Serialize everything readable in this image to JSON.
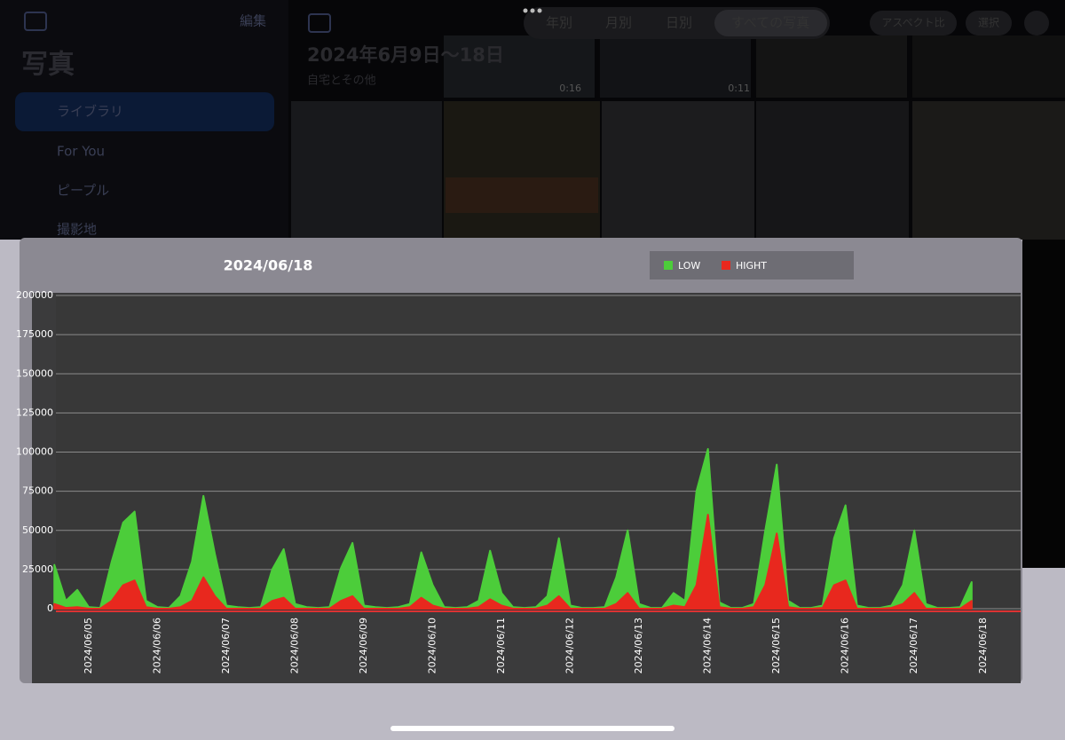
{
  "ui": {
    "sidebar": {
      "edit": "編集",
      "title": "写真",
      "items": [
        "ライブラリ",
        "For You",
        "ピープル",
        "撮影地"
      ]
    },
    "toolbar": {
      "segments": [
        "年別",
        "月別",
        "日別",
        "すべての写真"
      ],
      "aspect": "アスペクト比",
      "select": "選択"
    },
    "header": {
      "title": "2024年6月9日～18日",
      "subtitle": "自宅とその他"
    },
    "thumbs": [
      "0:16",
      "0:11"
    ]
  },
  "chart_data": {
    "type": "area",
    "title": "2024/06/18",
    "categories": [
      null,
      null,
      null,
      "2024/06/05",
      null,
      null,
      null,
      null,
      null,
      "2024/06/06",
      null,
      null,
      null,
      null,
      null,
      "2024/06/07",
      null,
      null,
      null,
      null,
      null,
      "2024/06/08",
      null,
      null,
      null,
      null,
      null,
      "2024/06/09",
      null,
      null,
      null,
      null,
      null,
      "2024/06/10",
      null,
      null,
      null,
      null,
      null,
      "2024/06/11",
      null,
      null,
      null,
      null,
      null,
      "2024/06/12",
      null,
      null,
      null,
      null,
      null,
      "2024/06/13",
      null,
      null,
      null,
      null,
      null,
      "2024/06/14",
      null,
      null,
      null,
      null,
      null,
      "2024/06/15",
      null,
      null,
      null,
      null,
      null,
      "2024/06/16",
      null,
      null,
      null,
      null,
      null,
      "2024/06/17",
      null,
      null,
      null,
      null,
      null,
      "2024/06/18"
    ],
    "series": [
      {
        "name": "LOW",
        "color": "#4ccd3a",
        "values": [
          28000,
          5000,
          12000,
          1000,
          500,
          30000,
          55000,
          62000,
          5000,
          1000,
          500,
          8000,
          30000,
          72000,
          35000,
          2000,
          1000,
          500,
          1000,
          25000,
          38000,
          3000,
          1000,
          500,
          1000,
          26000,
          42000,
          2000,
          1000,
          500,
          1000,
          3000,
          36000,
          15000,
          1000,
          500,
          1000,
          5000,
          37000,
          10000,
          1000,
          500,
          1000,
          8000,
          45000,
          2000,
          500,
          500,
          1000,
          20000,
          50000,
          3000,
          500,
          500,
          10000,
          5000,
          75000,
          102000,
          4000,
          500,
          500,
          3000,
          50000,
          92000,
          5000,
          500,
          500,
          2000,
          45000,
          66000,
          2000,
          500,
          500,
          2000,
          15000,
          50000,
          3000,
          500,
          500,
          1000,
          17000,
          null
        ]
      },
      {
        "name": "HIGHT",
        "color": "#e8281e",
        "values": [
          3000,
          500,
          1000,
          0,
          0,
          5000,
          15000,
          18000,
          1000,
          0,
          0,
          1000,
          5000,
          20000,
          8000,
          0,
          0,
          0,
          0,
          5000,
          7000,
          0,
          0,
          0,
          0,
          5000,
          8000,
          0,
          0,
          0,
          0,
          1000,
          7000,
          2000,
          0,
          0,
          0,
          1000,
          6000,
          2000,
          0,
          0,
          0,
          2000,
          8000,
          0,
          0,
          0,
          0,
          3000,
          10000,
          0,
          0,
          0,
          2000,
          1000,
          15000,
          60000,
          1000,
          0,
          0,
          1000,
          15000,
          48000,
          1000,
          0,
          0,
          500,
          15000,
          18000,
          0,
          0,
          0,
          500,
          3000,
          10000,
          0,
          0,
          0,
          0,
          5000,
          null
        ]
      }
    ],
    "ylim": [
      0,
      200000
    ],
    "yticks": [
      0,
      25000,
      50000,
      75000,
      100000,
      125000,
      150000,
      175000,
      200000
    ],
    "grid": true,
    "legend": "top"
  }
}
